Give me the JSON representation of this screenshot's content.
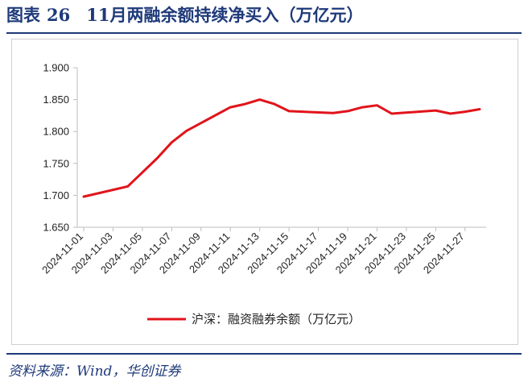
{
  "title": {
    "label": "图表",
    "number": "26",
    "text": "11月两融余额持续净买入（万亿元）"
  },
  "source": "资料来源：Wind，华创证券",
  "chart_data": {
    "type": "line",
    "title": "11月两融余额持续净买入（万亿元）",
    "xlabel": "",
    "ylabel": "",
    "ylim": [
      1.65,
      1.9
    ],
    "yticks": [
      "1.650",
      "1.700",
      "1.750",
      "1.800",
      "1.850",
      "1.900"
    ],
    "xticks": [
      "2024-11-01",
      "2024-11-03",
      "2024-11-05",
      "2024-11-07",
      "2024-11-09",
      "2024-11-11",
      "2024-11-13",
      "2024-11-15",
      "2024-11-17",
      "2024-11-19",
      "2024-11-21",
      "2024-11-23",
      "2024-11-25",
      "2024-11-27"
    ],
    "grid": false,
    "legend_position": "bottom",
    "series": [
      {
        "name": "沪深：融资融券余额（万亿元）",
        "color": "#e1141b",
        "x": [
          "2024-11-01",
          "2024-11-04",
          "2024-11-05",
          "2024-11-06",
          "2024-11-07",
          "2024-11-08",
          "2024-11-11",
          "2024-11-12",
          "2024-11-13",
          "2024-11-14",
          "2024-11-15",
          "2024-11-18",
          "2024-11-19",
          "2024-11-20",
          "2024-11-21",
          "2024-11-22",
          "2024-11-25",
          "2024-11-26",
          "2024-11-27",
          "2024-11-28"
        ],
        "values": [
          1.698,
          1.714,
          1.736,
          1.758,
          1.783,
          1.801,
          1.838,
          1.843,
          1.85,
          1.843,
          1.832,
          1.829,
          1.832,
          1.838,
          1.841,
          1.828,
          1.833,
          1.828,
          1.831,
          1.835
        ]
      }
    ]
  }
}
